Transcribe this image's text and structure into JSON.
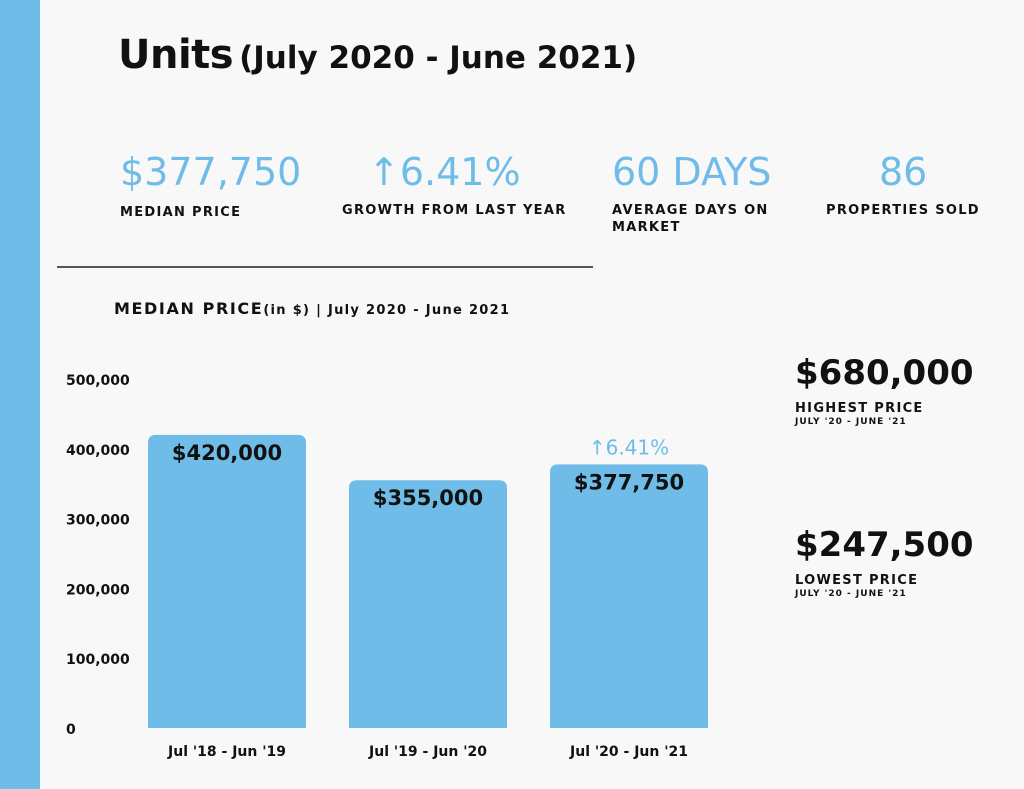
{
  "colors": {
    "accent": "#6fbce8",
    "text": "#111111",
    "background": "#f8f8f8"
  },
  "header": {
    "title": "Units",
    "subtitle": "(July 2020 - June 2021)"
  },
  "stats": [
    {
      "value": "$377,750",
      "label": "MEDIAN PRICE"
    },
    {
      "value": "↑6.41%",
      "label": "GROWTH FROM LAST YEAR"
    },
    {
      "value": "60 DAYS",
      "label": "AVERAGE DAYS ON MARKET"
    },
    {
      "value": "86",
      "label": "PROPERTIES SOLD"
    }
  ],
  "chart_heading": {
    "main": "MEDIAN PRICE",
    "suffix": "(in $) | July 2020 - June 2021"
  },
  "side_stats": {
    "highest": {
      "value": "$680,000",
      "label": "HIGHEST PRICE",
      "period": "JULY '20 - JUNE '21"
    },
    "lowest": {
      "value": "$247,500",
      "label": "LOWEST PRICE",
      "period": "JULY '20 - JUNE '21"
    }
  },
  "chart_data": {
    "type": "bar",
    "title": "MEDIAN PRICE (in $) | July 2020 - June 2021",
    "categories": [
      "Jul '18 - Jun '19",
      "Jul '19 - Jun '20",
      "Jul '20 - Jun '21"
    ],
    "values": [
      420000,
      355000,
      377750
    ],
    "data_labels": [
      "$420,000",
      "$355,000",
      "$377,750"
    ],
    "yticks": [
      0,
      100000,
      200000,
      300000,
      400000,
      500000
    ],
    "ytick_labels": [
      "0",
      "100,000",
      "200,000",
      "300,000",
      "400,000",
      "500,000"
    ],
    "ylim": [
      0,
      500000
    ],
    "xlabel": "",
    "ylabel": "",
    "grid": false,
    "annotation": {
      "category_index": 2,
      "text": "↑6.41%"
    }
  }
}
